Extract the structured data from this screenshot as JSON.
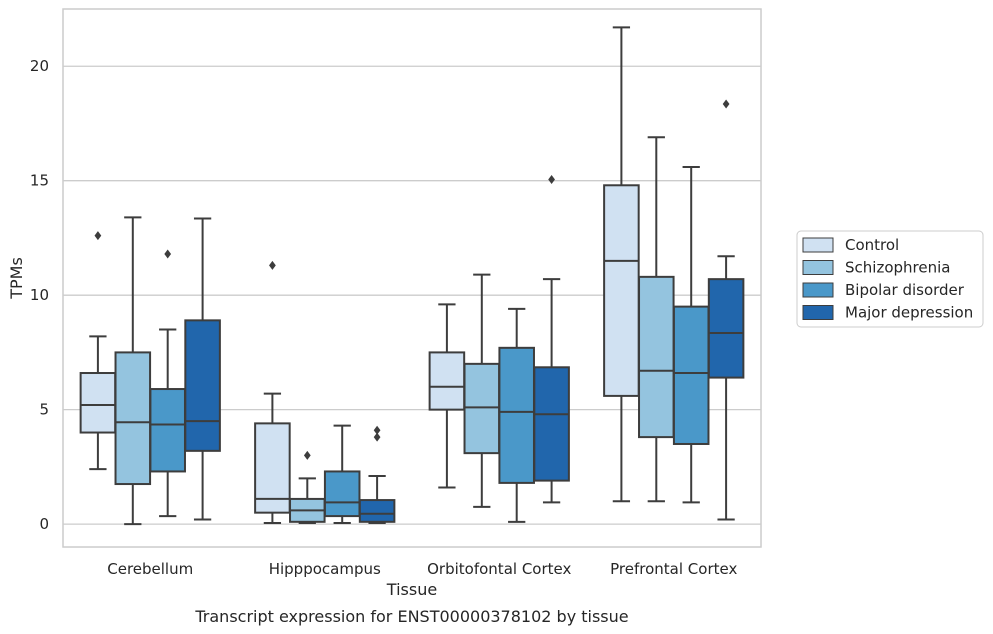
{
  "chart_data": {
    "type": "box",
    "title": "",
    "caption": "Transcript expression for ENST00000378102 by tissue",
    "xlabel": "Tissue",
    "ylabel": "TPMs",
    "ylim": [
      -1,
      22.5
    ],
    "yticks": [
      0,
      5,
      10,
      15,
      20
    ],
    "grid": "horizontal",
    "legend_placement": "right",
    "categories": [
      "Cerebellum",
      "Hipppocampus",
      "Orbitofontal Cortex",
      "Prefrontal Cortex"
    ],
    "series": [
      {
        "name": "Control",
        "color": "#d0e1f2",
        "boxes": [
          {
            "whislo": 2.4,
            "q1": 4.0,
            "med": 5.2,
            "q3": 6.6,
            "whishi": 8.2,
            "fliers": [
              12.6
            ]
          },
          {
            "whislo": 0.05,
            "q1": 0.5,
            "med": 1.1,
            "q3": 4.4,
            "whishi": 5.7,
            "fliers": [
              11.3
            ]
          },
          {
            "whislo": 1.6,
            "q1": 5.0,
            "med": 6.0,
            "q3": 7.5,
            "whishi": 9.6,
            "fliers": []
          },
          {
            "whislo": 1.0,
            "q1": 5.6,
            "med": 11.5,
            "q3": 14.8,
            "whishi": 21.7,
            "fliers": []
          }
        ]
      },
      {
        "name": "Schizophrenia",
        "color": "#94c4df",
        "boxes": [
          {
            "whislo": 0.0,
            "q1": 1.75,
            "med": 4.45,
            "q3": 7.5,
            "whishi": 13.4,
            "fliers": []
          },
          {
            "whislo": 0.05,
            "q1": 0.1,
            "med": 0.6,
            "q3": 1.1,
            "whishi": 2.0,
            "fliers": [
              3.0
            ]
          },
          {
            "whislo": 0.75,
            "q1": 3.1,
            "med": 5.1,
            "q3": 7.0,
            "whishi": 10.9,
            "fliers": []
          },
          {
            "whislo": 1.0,
            "q1": 3.8,
            "med": 6.7,
            "q3": 10.8,
            "whishi": 16.9,
            "fliers": []
          }
        ]
      },
      {
        "name": "Bipolar disorder",
        "color": "#4a98c9",
        "boxes": [
          {
            "whislo": 0.35,
            "q1": 2.3,
            "med": 4.35,
            "q3": 5.9,
            "whishi": 8.5,
            "fliers": [
              11.8
            ]
          },
          {
            "whislo": 0.05,
            "q1": 0.35,
            "med": 0.95,
            "q3": 2.3,
            "whishi": 4.3,
            "fliers": []
          },
          {
            "whislo": 0.1,
            "q1": 1.8,
            "med": 4.9,
            "q3": 7.7,
            "whishi": 9.4,
            "fliers": []
          },
          {
            "whislo": 0.95,
            "q1": 3.5,
            "med": 6.6,
            "q3": 9.5,
            "whishi": 15.6,
            "fliers": []
          }
        ]
      },
      {
        "name": "Major depression",
        "color": "#2166ac",
        "boxes": [
          {
            "whislo": 0.2,
            "q1": 3.2,
            "med": 4.5,
            "q3": 8.9,
            "whishi": 13.35,
            "fliers": []
          },
          {
            "whislo": 0.05,
            "q1": 0.1,
            "med": 0.45,
            "q3": 1.05,
            "whishi": 2.1,
            "fliers": [
              3.8,
              4.1
            ]
          },
          {
            "whislo": 0.95,
            "q1": 1.9,
            "med": 4.8,
            "q3": 6.85,
            "whishi": 10.7,
            "fliers": [
              15.05
            ]
          },
          {
            "whislo": 0.2,
            "q1": 6.4,
            "med": 8.35,
            "q3": 10.7,
            "whishi": 11.7,
            "fliers": [
              18.35
            ]
          }
        ]
      }
    ]
  }
}
